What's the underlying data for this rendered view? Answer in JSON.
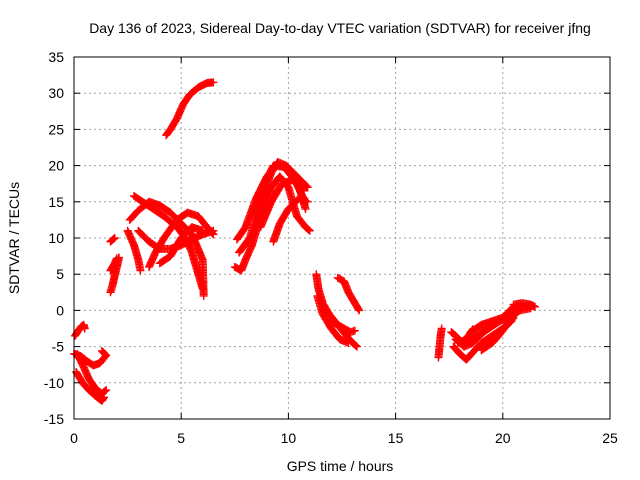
{
  "chart_data": {
    "type": "scatter",
    "title": "Day 136 of 2023, Sidereal Day-to-day VTEC variation (SDTVAR) for receiver jfng",
    "xlabel": "GPS time / hours",
    "ylabel": "SDTVAR / TECUs",
    "xlim": [
      0,
      25
    ],
    "ylim": [
      -15,
      35
    ],
    "xticks": [
      0,
      5,
      10,
      15,
      20,
      25
    ],
    "yticks": [
      -15,
      -10,
      -5,
      0,
      5,
      10,
      15,
      20,
      25,
      30,
      35
    ],
    "grid": true,
    "marker": "+",
    "color": "#ff0000",
    "tracks": [
      {
        "name": "a",
        "points": [
          [
            0.0,
            -6.0
          ],
          [
            0.3,
            -6.3
          ],
          [
            0.6,
            -7.0
          ],
          [
            0.9,
            -7.6
          ],
          [
            1.2,
            -7.3
          ],
          [
            1.5,
            -6.2
          ],
          [
            1.3,
            -5.6
          ]
        ]
      },
      {
        "name": "b",
        "points": [
          [
            0.15,
            -6.0
          ],
          [
            0.4,
            -7.5
          ],
          [
            0.7,
            -9.5
          ],
          [
            1.0,
            -10.8
          ],
          [
            1.3,
            -11.5
          ],
          [
            1.5,
            -11.0
          ]
        ]
      },
      {
        "name": "c",
        "points": [
          [
            0.1,
            -8.5
          ],
          [
            0.4,
            -10.0
          ],
          [
            0.7,
            -11.0
          ],
          [
            1.0,
            -11.8
          ],
          [
            1.3,
            -12.5
          ],
          [
            1.4,
            -12.0
          ]
        ]
      },
      {
        "name": "d",
        "points": [
          [
            0.05,
            -3.5
          ],
          [
            0.2,
            -2.8
          ],
          [
            0.35,
            -2.2
          ],
          [
            0.45,
            -2.0
          ],
          [
            0.5,
            -2.5
          ]
        ]
      },
      {
        "name": "e",
        "points": [
          [
            1.7,
            5.5
          ],
          [
            1.8,
            6.0
          ],
          [
            1.9,
            6.5
          ],
          [
            2.0,
            7.2
          ]
        ]
      },
      {
        "name": "f",
        "points": [
          [
            1.7,
            2.5
          ],
          [
            1.8,
            3.5
          ],
          [
            1.9,
            4.8
          ],
          [
            2.0,
            6.0
          ],
          [
            2.1,
            7.3
          ]
        ]
      },
      {
        "name": "g",
        "points": [
          [
            1.7,
            9.5
          ],
          [
            1.9,
            10.0
          ]
        ]
      },
      {
        "name": "h",
        "points": [
          [
            2.5,
            11.0
          ],
          [
            2.8,
            9.0
          ],
          [
            3.0,
            7.0
          ],
          [
            3.1,
            5.5
          ]
        ]
      },
      {
        "name": "i",
        "points": [
          [
            2.6,
            12.5
          ],
          [
            3.0,
            13.8
          ],
          [
            3.5,
            15.0
          ],
          [
            4.0,
            14.5
          ],
          [
            4.5,
            13.5
          ],
          [
            5.0,
            12.0
          ],
          [
            5.5,
            10.5
          ],
          [
            6.0,
            7.0
          ],
          [
            6.05,
            2.0
          ]
        ]
      },
      {
        "name": "j",
        "points": [
          [
            2.8,
            15.8
          ],
          [
            3.2,
            15.0
          ],
          [
            3.7,
            14.0
          ],
          [
            4.2,
            13.0
          ],
          [
            4.8,
            11.5
          ],
          [
            5.2,
            10.0
          ],
          [
            5.5,
            8.0
          ],
          [
            5.8,
            5.0
          ],
          [
            6.0,
            3.0
          ]
        ]
      },
      {
        "name": "k",
        "points": [
          [
            3.0,
            11.0
          ],
          [
            3.5,
            9.5
          ],
          [
            4.0,
            8.5
          ],
          [
            4.5,
            8.5
          ],
          [
            5.0,
            9.0
          ],
          [
            5.5,
            9.8
          ],
          [
            6.0,
            10.5
          ],
          [
            6.5,
            11.0
          ]
        ]
      },
      {
        "name": "l",
        "points": [
          [
            3.5,
            6.0
          ],
          [
            3.8,
            8.0
          ],
          [
            4.2,
            10.0
          ],
          [
            4.8,
            12.5
          ],
          [
            5.3,
            13.5
          ],
          [
            5.8,
            13.0
          ],
          [
            6.2,
            11.5
          ],
          [
            6.5,
            10.5
          ]
        ]
      },
      {
        "name": "m",
        "points": [
          [
            4.0,
            6.5
          ],
          [
            4.5,
            7.5
          ],
          [
            5.0,
            10.0
          ],
          [
            5.5,
            11.5
          ],
          [
            6.0,
            11.0
          ]
        ]
      },
      {
        "name": "n",
        "points": [
          [
            4.3,
            24.2
          ],
          [
            4.5,
            25.0
          ],
          [
            4.8,
            26.5
          ],
          [
            5.1,
            28.5
          ],
          [
            5.4,
            29.8
          ],
          [
            5.8,
            30.8
          ],
          [
            6.2,
            31.4
          ],
          [
            6.5,
            31.5
          ]
        ]
      },
      {
        "name": "o",
        "points": [
          [
            7.5,
            6.0
          ],
          [
            7.8,
            5.5
          ],
          [
            8.0,
            7.0
          ],
          [
            8.3,
            9.0
          ],
          [
            8.8,
            14.0
          ],
          [
            9.2,
            17.0
          ],
          [
            9.6,
            18.5
          ],
          [
            10.0,
            17.0
          ],
          [
            10.4,
            13.0
          ],
          [
            10.8,
            11.5
          ],
          [
            11.0,
            11.0
          ]
        ]
      },
      {
        "name": "p",
        "points": [
          [
            7.6,
            9.8
          ],
          [
            8.0,
            11.5
          ],
          [
            8.5,
            15.5
          ],
          [
            9.0,
            18.5
          ],
          [
            9.5,
            20.2
          ],
          [
            10.0,
            19.5
          ],
          [
            10.5,
            17.0
          ],
          [
            10.8,
            14.0
          ]
        ]
      },
      {
        "name": "q",
        "points": [
          [
            7.7,
            8.0
          ],
          [
            8.2,
            10.0
          ],
          [
            8.7,
            15.0
          ],
          [
            9.2,
            19.0
          ],
          [
            9.5,
            20.5
          ],
          [
            9.9,
            20.0
          ],
          [
            10.4,
            18.5
          ],
          [
            10.9,
            17.0
          ]
        ]
      },
      {
        "name": "r",
        "points": [
          [
            8.3,
            13.0
          ],
          [
            8.8,
            17.0
          ],
          [
            9.3,
            20.0
          ],
          [
            9.8,
            19.8
          ],
          [
            10.3,
            18.0
          ],
          [
            10.7,
            15.5
          ]
        ]
      },
      {
        "name": "s",
        "points": [
          [
            9.3,
            9.5
          ],
          [
            9.6,
            12.0
          ],
          [
            10.0,
            14.0
          ],
          [
            10.5,
            15.5
          ],
          [
            10.9,
            15.0
          ]
        ]
      },
      {
        "name": "t",
        "points": [
          [
            8.7,
            11.5
          ],
          [
            9.2,
            15.0
          ],
          [
            9.7,
            17.5
          ],
          [
            10.2,
            18.0
          ],
          [
            10.7,
            16.5
          ]
        ]
      },
      {
        "name": "u",
        "points": [
          [
            11.3,
            5.0
          ],
          [
            11.4,
            3.0
          ],
          [
            11.6,
            1.0
          ],
          [
            11.9,
            -0.5
          ],
          [
            12.3,
            -2.0
          ],
          [
            12.7,
            -3.5
          ],
          [
            13.0,
            -4.5
          ],
          [
            13.2,
            -5.0
          ]
        ]
      },
      {
        "name": "v",
        "points": [
          [
            11.35,
            2.0
          ],
          [
            11.6,
            -0.5
          ],
          [
            12.0,
            -2.5
          ],
          [
            12.4,
            -4.0
          ],
          [
            12.8,
            -4.5
          ]
        ]
      },
      {
        "name": "w",
        "points": [
          [
            12.3,
            4.5
          ],
          [
            12.6,
            4.0
          ],
          [
            12.8,
            2.5
          ],
          [
            13.0,
            1.5
          ],
          [
            13.2,
            0.5
          ],
          [
            13.3,
            0.0
          ]
        ]
      },
      {
        "name": "x",
        "points": [
          [
            12.0,
            -1.5
          ],
          [
            12.3,
            -2.0
          ],
          [
            12.6,
            -2.5
          ],
          [
            12.9,
            -3.0
          ],
          [
            13.1,
            -2.8
          ]
        ]
      },
      {
        "name": "y",
        "points": [
          [
            17.0,
            -6.5
          ],
          [
            17.05,
            -5.0
          ],
          [
            17.1,
            -3.5
          ],
          [
            17.15,
            -2.5
          ]
        ]
      },
      {
        "name": "z",
        "points": [
          [
            17.6,
            -3.0
          ],
          [
            17.8,
            -3.5
          ],
          [
            18.1,
            -4.5
          ],
          [
            18.4,
            -3.5
          ],
          [
            18.6,
            -2.6
          ]
        ]
      },
      {
        "name": "aa",
        "points": [
          [
            17.7,
            -5.0
          ],
          [
            18.0,
            -6.0
          ],
          [
            18.3,
            -6.8
          ],
          [
            18.6,
            -5.8
          ],
          [
            19.0,
            -4.5
          ],
          [
            19.5,
            -3.5
          ],
          [
            20.0,
            -2.5
          ],
          [
            20.4,
            -1.5
          ]
        ]
      },
      {
        "name": "ab",
        "points": [
          [
            17.8,
            -4.0
          ],
          [
            18.2,
            -5.0
          ],
          [
            18.6,
            -4.5
          ],
          [
            19.1,
            -3.0
          ],
          [
            19.6,
            -2.0
          ],
          [
            20.1,
            -1.0
          ],
          [
            20.6,
            0.0
          ]
        ]
      },
      {
        "name": "ac",
        "points": [
          [
            17.9,
            -4.5
          ],
          [
            18.3,
            -4.0
          ],
          [
            18.8,
            -3.5
          ],
          [
            19.3,
            -2.5
          ],
          [
            19.8,
            -1.5
          ],
          [
            20.3,
            -1.0
          ],
          [
            20.8,
            0.0
          ],
          [
            21.3,
            0.3
          ]
        ]
      },
      {
        "name": "ad",
        "points": [
          [
            18.5,
            -3.0
          ],
          [
            19.0,
            -2.0
          ],
          [
            19.5,
            -1.5
          ],
          [
            20.0,
            -1.0
          ],
          [
            20.5,
            0.5
          ],
          [
            21.0,
            0.5
          ],
          [
            21.4,
            0.6
          ]
        ]
      },
      {
        "name": "ae",
        "points": [
          [
            19.0,
            -5.5
          ],
          [
            19.5,
            -4.5
          ],
          [
            19.8,
            -3.5
          ],
          [
            20.2,
            -2.0
          ],
          [
            20.5,
            -1.0
          ]
        ]
      },
      {
        "name": "af",
        "points": [
          [
            20.5,
            0.8
          ],
          [
            20.9,
            1.0
          ],
          [
            21.3,
            0.8
          ],
          [
            21.5,
            0.5
          ]
        ]
      }
    ]
  }
}
